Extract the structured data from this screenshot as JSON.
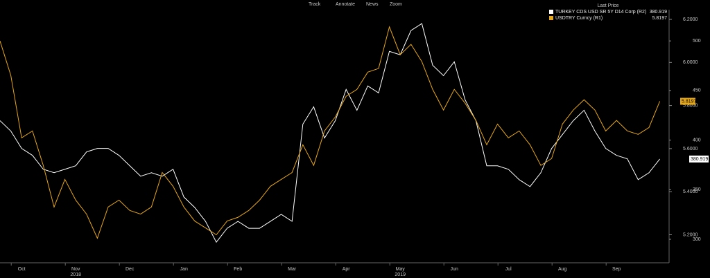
{
  "toolbar": [
    "Track",
    "Annotate",
    "News",
    "Zoom"
  ],
  "chart_data": {
    "type": "line",
    "legend_title": "Last Price",
    "categories": [
      null,
      null,
      "Oct",
      null,
      null,
      null,
      null,
      "Nov",
      null,
      null,
      null,
      null,
      "Dec",
      null,
      null,
      null,
      null,
      "Jan",
      null,
      null,
      null,
      null,
      "Feb",
      null,
      null,
      null,
      null,
      "Mar",
      null,
      null,
      null,
      null,
      "Apr",
      null,
      null,
      null,
      null,
      "May",
      null,
      null,
      null,
      null,
      "Jun",
      null,
      null,
      null,
      null,
      "Jul",
      null,
      null,
      null,
      null,
      "Aug",
      null,
      null,
      null,
      null,
      "Sep",
      null,
      null,
      null,
      null
    ],
    "year_labels": [
      "2018",
      "2019"
    ],
    "series": [
      {
        "name": "TURKEY CDS USD SR 5Y D14 Corp  (R2)",
        "color": "#ffffff",
        "axis": "y2",
        "values": [
          419.6,
          409.1,
          391.6,
          384.6,
          370.6,
          367.1,
          370.6,
          374.1,
          388.1,
          391.6,
          391.6,
          384.6,
          374.1,
          363.6,
          367.1,
          363.6,
          370.6,
          342.6,
          332.1,
          318.1,
          297.1,
          311.1,
          318.1,
          311.1,
          311.1,
          318.1,
          325.1,
          318.1,
          416.1,
          433.6,
          402.1,
          419.6,
          451.1,
          430.1,
          454.6,
          447.6,
          489.5,
          486.0,
          510.5,
          517.5,
          475.5,
          465.0,
          479.0,
          440.6,
          419.6,
          374.1,
          374.1,
          370.6,
          360.1,
          353.1,
          367.1,
          391.6,
          405.6,
          419.6,
          430.1,
          409.1,
          391.6,
          384.6,
          381.1,
          360.1,
          367.1,
          380.919
        ]
      },
      {
        "name": "USDTRY Curncy  (R1)",
        "color": "#e6a817",
        "axis": "y",
        "values": [
          6.1,
          5.94,
          5.65,
          5.682,
          5.522,
          5.329,
          5.457,
          5.361,
          5.296,
          5.184,
          5.329,
          5.361,
          5.313,
          5.296,
          5.329,
          5.489,
          5.425,
          5.329,
          5.264,
          5.232,
          5.2,
          5.264,
          5.281,
          5.313,
          5.361,
          5.425,
          5.457,
          5.489,
          5.618,
          5.522,
          5.682,
          5.747,
          5.843,
          5.875,
          5.955,
          5.972,
          6.165,
          6.036,
          6.084,
          6.004,
          5.875,
          5.779,
          5.875,
          5.811,
          5.731,
          5.618,
          5.714,
          5.65,
          5.682,
          5.618,
          5.522,
          5.554,
          5.714,
          5.779,
          5.827,
          5.779,
          5.682,
          5.731,
          5.682,
          5.666,
          5.698,
          5.8197
        ]
      }
    ],
    "ylim": [
      5.07,
      6.245
    ],
    "yticks": [
      {
        "value": 5.2,
        "label": "5.2000"
      },
      {
        "value": 5.4,
        "label": "5.4000"
      },
      {
        "value": 5.6,
        "label": "5.6000"
      },
      {
        "value": 5.8,
        "label": "5.8000"
      },
      {
        "value": 6.0,
        "label": "6.0000"
      },
      {
        "value": 6.2,
        "label": "6.2000"
      }
    ],
    "y2lim": [
      276.3,
      531.5
    ],
    "y2ticks": [
      300,
      350,
      400,
      450,
      500
    ],
    "grid": false
  }
}
